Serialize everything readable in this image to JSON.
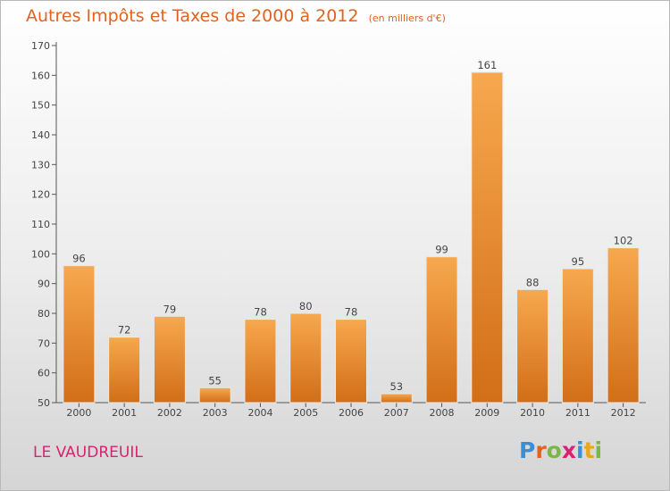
{
  "title": "Autres Impôts et Taxes de 2000 à 2012",
  "unit": "(en milliers d'€)",
  "commune": "LE VAUDREUIL",
  "logo": "Proxiti",
  "colors": {
    "title": "#e2621e",
    "commune": "#d9236f",
    "bar_top": "#f7a84e",
    "bar_bottom": "#d26e18"
  },
  "chart_data": {
    "type": "bar",
    "title": "Autres Impôts et Taxes de 2000 à 2012",
    "subtitle": "(en milliers d'€)",
    "categories": [
      "2000",
      "2001",
      "2002",
      "2003",
      "2004",
      "2005",
      "2006",
      "2007",
      "2008",
      "2009",
      "2010",
      "2011",
      "2012"
    ],
    "values": [
      96,
      72,
      79,
      55,
      78,
      80,
      78,
      53,
      99,
      161,
      88,
      95,
      102
    ],
    "ylim": [
      50,
      170
    ],
    "yticks": [
      50,
      60,
      70,
      80,
      90,
      100,
      110,
      120,
      130,
      140,
      150,
      160,
      170
    ],
    "xlabel": "",
    "ylabel": "",
    "grid": false,
    "legend": "none"
  }
}
